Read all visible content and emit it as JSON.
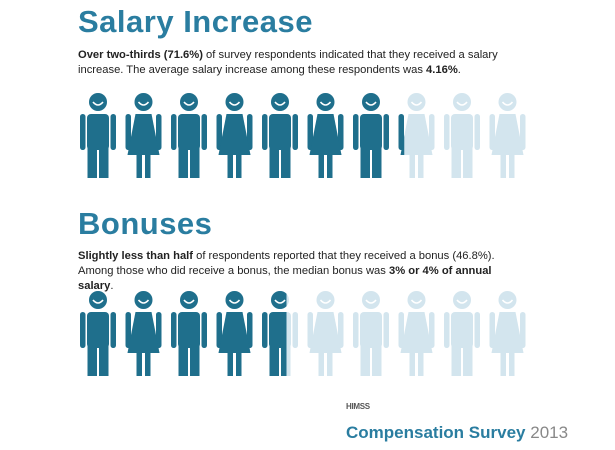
{
  "sections": [
    {
      "title": "Salary Increase",
      "description": [
        {
          "text": "Over two-thirds (71.6%)",
          "bold": true
        },
        {
          "text": " of survey respondents indicated that they received a salary increase. The average salary increase among these respondents was "
        },
        {
          "text": "4.16%",
          "bold": true
        },
        {
          "text": "."
        }
      ],
      "percent": 71.6
    },
    {
      "title": "Bonuses",
      "description": [
        {
          "text": "Slightly less than half",
          "bold": true
        },
        {
          "text": " of respondents reported that they received a bonus (46.8%).  Among those who did receive a bonus, the median bonus was "
        },
        {
          "text": "3% or 4% of annual salary",
          "bold": true
        },
        {
          "text": "."
        }
      ],
      "percent": 46.8
    }
  ],
  "footer": {
    "logo": "HIMSS",
    "title": "Compensation Survey",
    "year": "2013"
  },
  "colors": {
    "filled": "#1f6f8c",
    "empty": "#d3e5ee",
    "title": "#2a7da0"
  }
}
